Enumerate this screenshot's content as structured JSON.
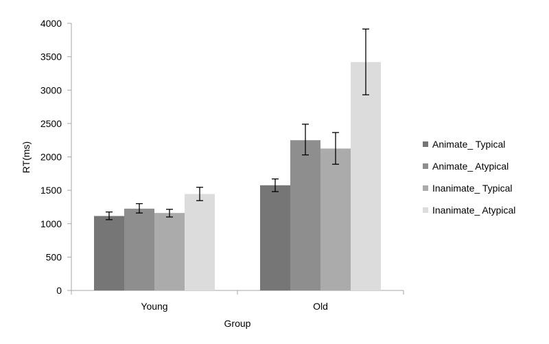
{
  "chart_data": {
    "type": "bar",
    "title": "",
    "xlabel": "Group",
    "ylabel": "RT(ms)",
    "categories": [
      "Young",
      "Old"
    ],
    "ylim": [
      0,
      4000
    ],
    "yticks": [
      0,
      500,
      1000,
      1500,
      2000,
      2500,
      3000,
      3500,
      4000
    ],
    "grid": false,
    "legend_position": "right",
    "series": [
      {
        "name": "Animate_ Typical",
        "color": "#767676",
        "values": [
          1115,
          1575
        ],
        "error_low": [
          1060,
          1480
        ],
        "error_high": [
          1175,
          1670
        ]
      },
      {
        "name": "Animate_ Atypical",
        "color": "#8e8e8e",
        "values": [
          1225,
          2250
        ],
        "error_low": [
          1160,
          2030
        ],
        "error_high": [
          1300,
          2490
        ]
      },
      {
        "name": "Inanimate_ Typical",
        "color": "#ababab",
        "values": [
          1160,
          2125
        ],
        "error_low": [
          1100,
          1890
        ],
        "error_high": [
          1215,
          2365
        ]
      },
      {
        "name": "Inanimate_ Atypical",
        "color": "#dcdcdc",
        "values": [
          1445,
          3420
        ],
        "error_low": [
          1345,
          2930
        ],
        "error_high": [
          1545,
          3915
        ]
      }
    ]
  }
}
